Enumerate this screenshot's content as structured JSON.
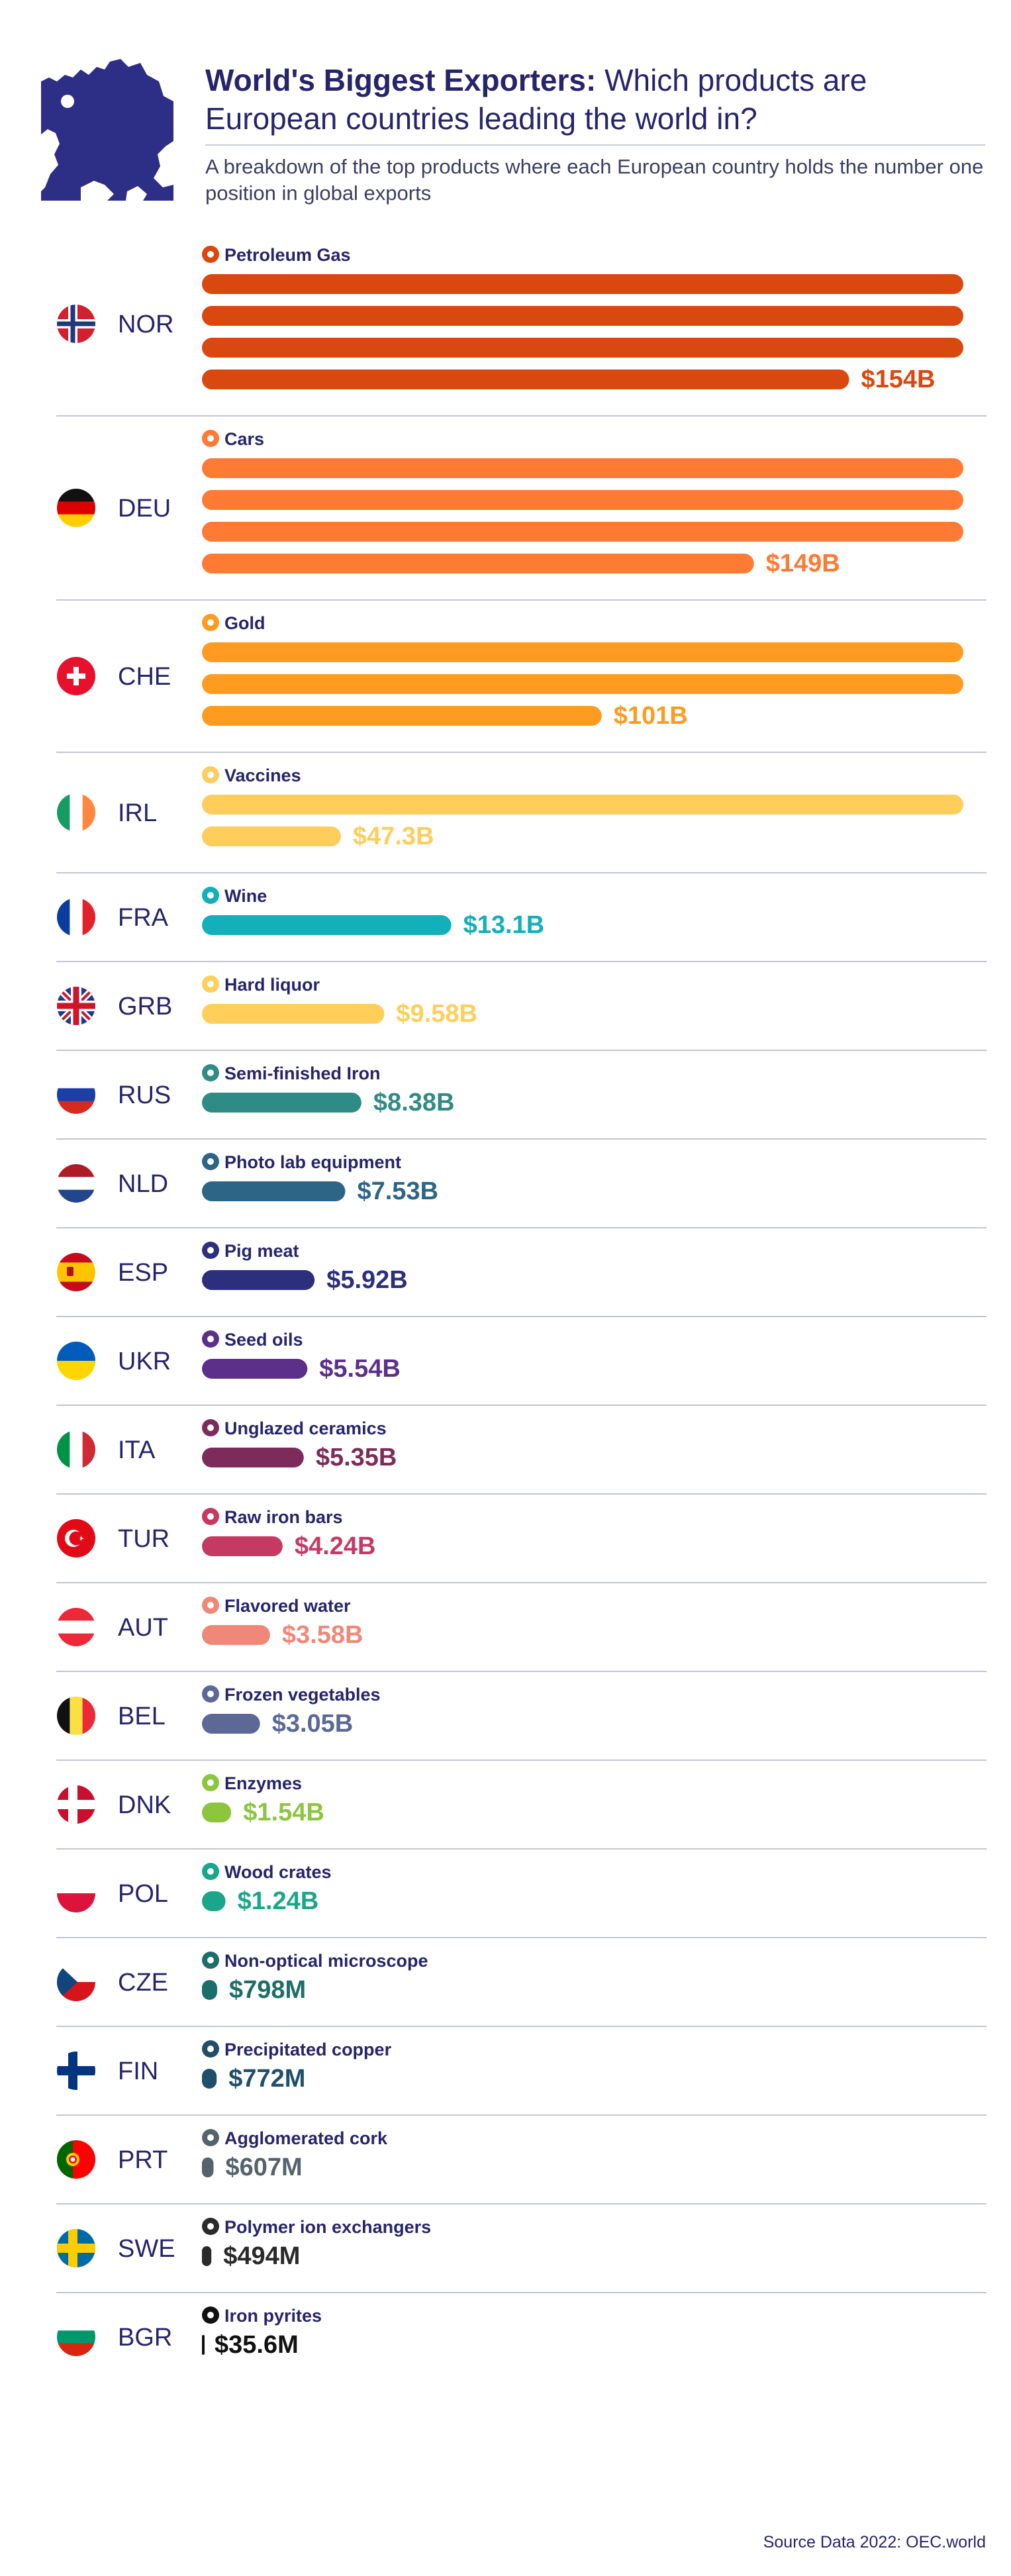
{
  "header": {
    "title_bold": "World's Biggest Exporters:",
    "title_rest": " Which products are European countries leading the world in?",
    "subtitle": "A breakdown of the top products where each European country holds the number one position in global exports"
  },
  "source": "Source Data 2022: OEC.world",
  "chart_data": {
    "type": "bar",
    "orientation": "horizontal",
    "unit": "USD billions",
    "note": "Long bars wrap onto additional rows",
    "rows": [
      {
        "code": "NOR",
        "product": "Petroleum Gas",
        "label": "$154B",
        "value": 154,
        "color": "#d9480f",
        "flag": "nor",
        "icon": "gas-cylinder-icon"
      },
      {
        "code": "DEU",
        "product": "Cars",
        "label": "$149B",
        "value": 149,
        "color": "#ff7a33",
        "flag": "deu",
        "icon": "car-icon"
      },
      {
        "code": "CHE",
        "product": "Gold",
        "label": "$101B",
        "value": 101,
        "color": "#ff9b21",
        "flag": "che",
        "icon": "gold-bars-icon"
      },
      {
        "code": "IRL",
        "product": "Vaccines",
        "label": "$47.3B",
        "value": 47.3,
        "color": "#ffcd5c",
        "flag": "irl",
        "icon": "syringe-icon"
      },
      {
        "code": "FRA",
        "product": "Wine",
        "label": "$13.1B",
        "value": 13.1,
        "color": "#11b0bb",
        "flag": "fra",
        "icon": "wine-icon"
      },
      {
        "code": "GRB",
        "product": "Hard liquor",
        "label": "$9.58B",
        "value": 9.58,
        "color": "#ffcf5a",
        "flag": "grb",
        "icon": "liquor-icon"
      },
      {
        "code": "RUS",
        "product": "Semi-finished Iron",
        "label": "$8.38B",
        "value": 8.38,
        "color": "#2f8b85",
        "flag": "rus",
        "icon": "iron-icon"
      },
      {
        "code": "NLD",
        "product": "Photo lab equipment",
        "label": "$7.53B",
        "value": 7.53,
        "color": "#2c6585",
        "flag": "nld",
        "icon": "camera-icon"
      },
      {
        "code": "ESP",
        "product": "Pig meat",
        "label": "$5.92B",
        "value": 5.92,
        "color": "#2b2f7d",
        "flag": "esp",
        "icon": "pig-icon"
      },
      {
        "code": "UKR",
        "product": "Seed oils",
        "label": "$5.54B",
        "value": 5.54,
        "color": "#5c2f8a",
        "flag": "ukr",
        "icon": "seedling-icon"
      },
      {
        "code": "ITA",
        "product": "Unglazed ceramics",
        "label": "$5.35B",
        "value": 5.35,
        "color": "#7c2b5a",
        "flag": "ita",
        "icon": "ceramic-icon"
      },
      {
        "code": "TUR",
        "product": "Raw iron bars",
        "label": "$4.24B",
        "value": 4.24,
        "color": "#c53a63",
        "flag": "tur",
        "icon": "iron-bars-icon"
      },
      {
        "code": "AUT",
        "product": "Flavored water",
        "label": "$3.58B",
        "value": 3.58,
        "color": "#ef8878",
        "flag": "aut",
        "icon": "bottle-icon"
      },
      {
        "code": "BEL",
        "product": "Frozen vegetables",
        "label": "$3.05B",
        "value": 3.05,
        "color": "#5c6996",
        "flag": "bel",
        "icon": "vegetable-icon"
      },
      {
        "code": "DNK",
        "product": "Enzymes",
        "label": "$1.54B",
        "value": 1.54,
        "color": "#8cc63f",
        "flag": "dnk",
        "icon": "enzyme-icon"
      },
      {
        "code": "POL",
        "product": "Wood crates",
        "label": "$1.24B",
        "value": 1.24,
        "color": "#1aa68a",
        "flag": "pol",
        "icon": "crate-icon"
      },
      {
        "code": "CZE",
        "product": "Non-optical microscope",
        "label": "$798M",
        "value": 0.798,
        "color": "#1c6e6b",
        "flag": "cze",
        "icon": "microscope-icon"
      },
      {
        "code": "FIN",
        "product": "Precipitated copper",
        "label": "$772M",
        "value": 0.772,
        "color": "#1f4f6b",
        "flag": "fin",
        "icon": "copper-icon"
      },
      {
        "code": "PRT",
        "product": "Agglomerated cork",
        "label": "$607M",
        "value": 0.607,
        "color": "#55636d",
        "flag": "prt",
        "icon": "cork-icon"
      },
      {
        "code": "SWE",
        "product": "Polymer ion exchangers",
        "label": "$494M",
        "value": 0.494,
        "color": "#2a2a2a",
        "flag": "swe",
        "icon": "polymer-icon"
      },
      {
        "code": "BGR",
        "product": "Iron pyrites",
        "label": "$35.6M",
        "value": 0.0356,
        "color": "#111111",
        "flag": "bgr",
        "icon": "pyrite-icon"
      }
    ]
  }
}
